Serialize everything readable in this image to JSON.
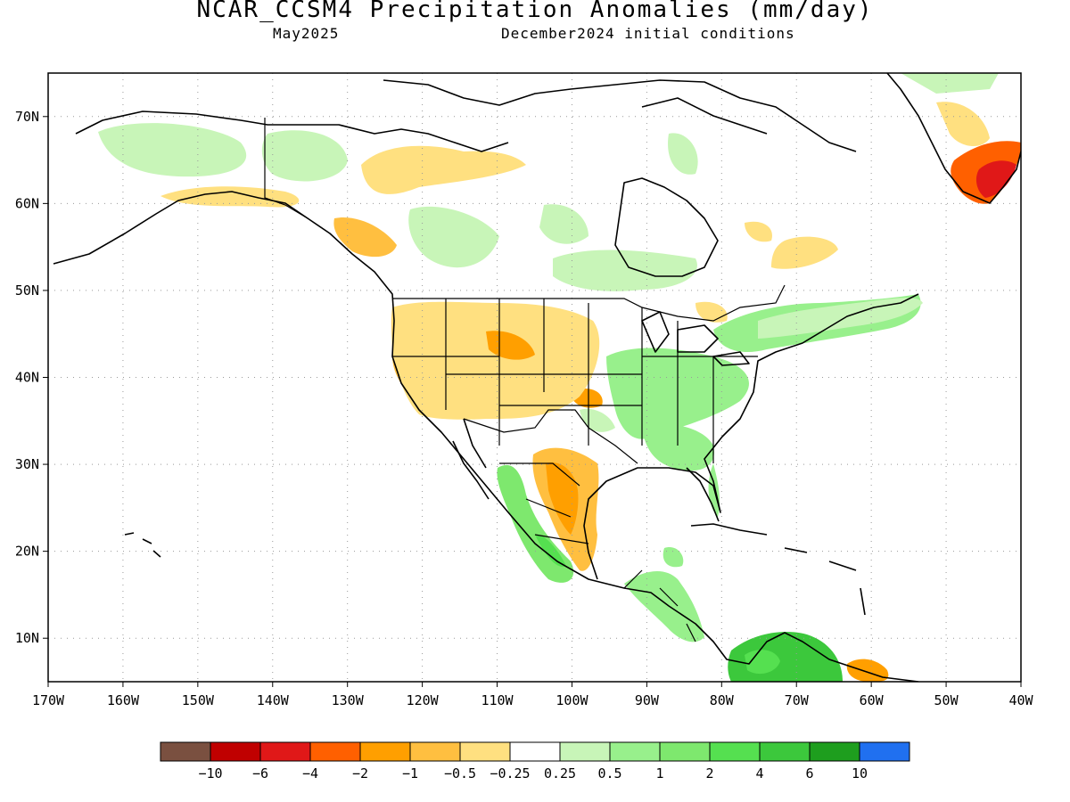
{
  "title": "NCAR_CCSM4 Precipitation Anomalies (mm/day)",
  "subtitle_left": "May2025",
  "subtitle_right": "December2024 initial conditions",
  "map": {
    "lon_range": [
      -170,
      -40
    ],
    "lat_range": [
      5,
      75
    ],
    "lon_labels": [
      "170W",
      "160W",
      "150W",
      "140W",
      "130W",
      "120W",
      "110W",
      "100W",
      "90W",
      "80W",
      "70W",
      "60W",
      "50W",
      "40W"
    ],
    "lat_labels": [
      "10N",
      "20N",
      "30N",
      "40N",
      "50N",
      "60N",
      "70N"
    ],
    "gridlines": "dotted"
  },
  "legend": {
    "colors": [
      "#7a5040",
      "#c00000",
      "#e01818",
      "#ff6000",
      "#ff9f00",
      "#ffbf40",
      "#ffe080",
      "#ffffff",
      "#c8f5b8",
      "#98f08c",
      "#7ee86e",
      "#55e050",
      "#3cc83c",
      "#1e9e1e",
      "#2070f0"
    ],
    "labels": [
      "−10",
      "−6",
      "−4",
      "−2",
      "−1",
      "−0.5",
      "−0.25",
      "0.25",
      "0.5",
      "1",
      "2",
      "4",
      "6",
      "10"
    ]
  },
  "anomaly_regions": [
    {
      "name": "alaska-west",
      "level": "0.25"
    },
    {
      "name": "yukon",
      "level": "0.25"
    },
    {
      "name": "alaska-south-coast",
      "level": "-0.5"
    },
    {
      "name": "nw-canada",
      "level": "-0.25"
    },
    {
      "name": "bc-coast",
      "level": "-1"
    },
    {
      "name": "us-northwest",
      "level": "-1"
    },
    {
      "name": "montana-wyoming",
      "level": "-2"
    },
    {
      "name": "us-southwest",
      "level": "-0.5"
    },
    {
      "name": "ohio-valley",
      "level": "0.5"
    },
    {
      "name": "southeast-us",
      "level": "0.5"
    },
    {
      "name": "northeast-us",
      "level": "0.25"
    },
    {
      "name": "mexico-east",
      "level": "-1"
    },
    {
      "name": "mexico-west-coast",
      "level": "1"
    },
    {
      "name": "central-america",
      "level": "0.5"
    },
    {
      "name": "colombia",
      "level": "2"
    },
    {
      "name": "venezuela",
      "level": "-2"
    },
    {
      "name": "greenland-south",
      "level": "-4"
    }
  ]
}
